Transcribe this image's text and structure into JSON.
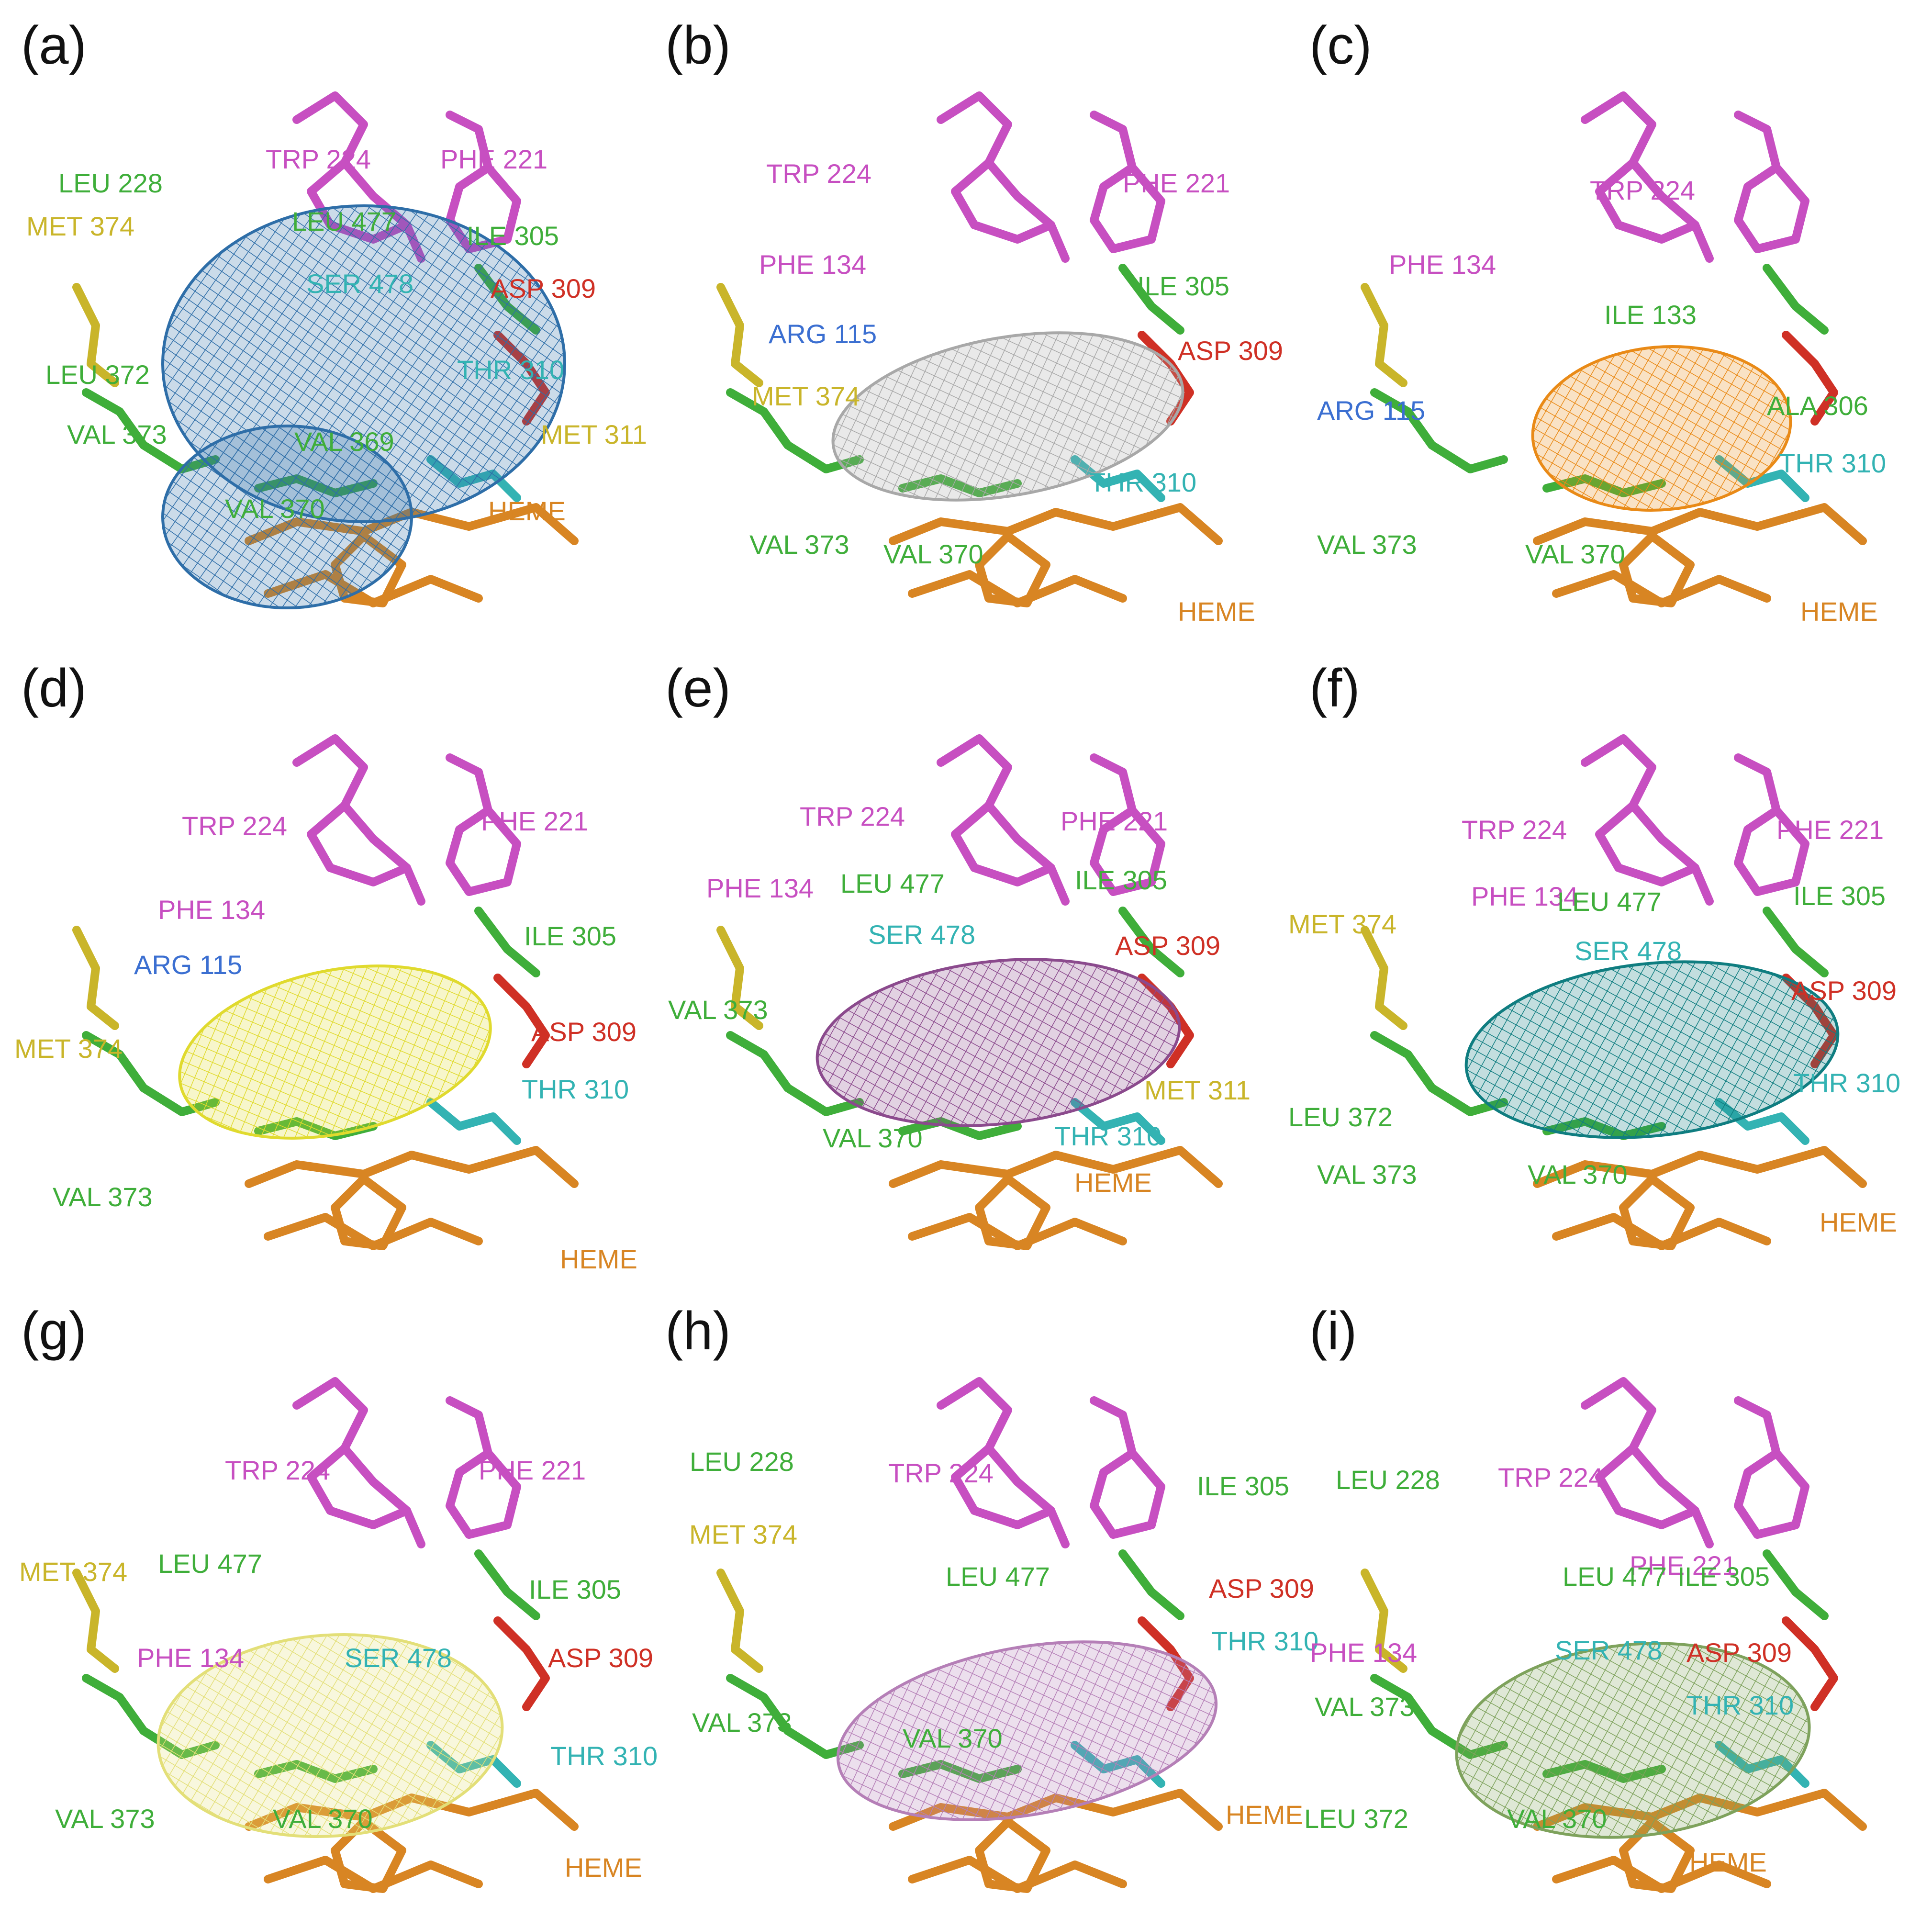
{
  "colors": {
    "magenta": "#c74fc1",
    "green": "#3fae3a",
    "yellow": "#c9b52a",
    "red": "#cf3025",
    "cyan": "#33b3b3",
    "blue": "#3b6fd1",
    "orange": "#d88523",
    "mesh_a": "#2e6ea8",
    "mesh_b": "#a8a8a8",
    "mesh_c": "#e98a17",
    "mesh_d": "#e0da2e",
    "mesh_e": "#8b4a8d",
    "mesh_f": "#0f7d80",
    "mesh_g": "#e3df78",
    "mesh_h": "#b57fb7",
    "mesh_i": "#7ea25c"
  },
  "panels": [
    {
      "id": "a",
      "label": "(a)",
      "mesh_color": "#2e6ea8",
      "labels": [
        {
          "text": "TRP 224",
          "color": "#c74fc1"
        },
        {
          "text": "PHE 221",
          "color": "#c74fc1"
        },
        {
          "text": "LEU 228",
          "color": "#3fae3a"
        },
        {
          "text": "LEU 477",
          "color": "#3fae3a"
        },
        {
          "text": "ILE 305",
          "color": "#3fae3a"
        },
        {
          "text": "MET 374",
          "color": "#c9b52a"
        },
        {
          "text": "SER 478",
          "color": "#33b3b3"
        },
        {
          "text": "ASP 309",
          "color": "#cf3025"
        },
        {
          "text": "LEU 372",
          "color": "#3fae3a"
        },
        {
          "text": "THR 310",
          "color": "#33b3b3"
        },
        {
          "text": "VAL 373",
          "color": "#3fae3a"
        },
        {
          "text": "VAL 369",
          "color": "#3fae3a"
        },
        {
          "text": "MET 311",
          "color": "#c9b52a"
        },
        {
          "text": "VAL 370",
          "color": "#3fae3a"
        },
        {
          "text": "HEME",
          "color": "#d88523"
        }
      ]
    },
    {
      "id": "b",
      "label": "(b)",
      "mesh_color": "#a8a8a8",
      "labels": [
        {
          "text": "TRP 224",
          "color": "#c74fc1"
        },
        {
          "text": "PHE 221",
          "color": "#c74fc1"
        },
        {
          "text": "PHE 134",
          "color": "#c74fc1"
        },
        {
          "text": "ILE 305",
          "color": "#3fae3a"
        },
        {
          "text": "ARG 115",
          "color": "#3b6fd1"
        },
        {
          "text": "ASP 309",
          "color": "#cf3025"
        },
        {
          "text": "MET 374",
          "color": "#c9b52a"
        },
        {
          "text": "THR 310",
          "color": "#33b3b3"
        },
        {
          "text": "VAL 373",
          "color": "#3fae3a"
        },
        {
          "text": "VAL 370",
          "color": "#3fae3a"
        },
        {
          "text": "HEME",
          "color": "#d88523"
        }
      ]
    },
    {
      "id": "c",
      "label": "(c)",
      "mesh_color": "#e98a17",
      "labels": [
        {
          "text": "TRP 224",
          "color": "#c74fc1"
        },
        {
          "text": "PHE 134",
          "color": "#c74fc1"
        },
        {
          "text": "ILE 133",
          "color": "#3fae3a"
        },
        {
          "text": "ARG 115",
          "color": "#3b6fd1"
        },
        {
          "text": "ALA 306",
          "color": "#3fae3a"
        },
        {
          "text": "THR 310",
          "color": "#33b3b3"
        },
        {
          "text": "VAL 373",
          "color": "#3fae3a"
        },
        {
          "text": "VAL 370",
          "color": "#3fae3a"
        },
        {
          "text": "HEME",
          "color": "#d88523"
        }
      ]
    },
    {
      "id": "d",
      "label": "(d)",
      "mesh_color": "#e0da2e",
      "labels": [
        {
          "text": "TRP 224",
          "color": "#c74fc1"
        },
        {
          "text": "PHE 221",
          "color": "#c74fc1"
        },
        {
          "text": "PHE 134",
          "color": "#c74fc1"
        },
        {
          "text": "ILE 305",
          "color": "#3fae3a"
        },
        {
          "text": "ARG 115",
          "color": "#3b6fd1"
        },
        {
          "text": "MET 374",
          "color": "#c9b52a"
        },
        {
          "text": "ASP 309",
          "color": "#cf3025"
        },
        {
          "text": "THR 310",
          "color": "#33b3b3"
        },
        {
          "text": "VAL 373",
          "color": "#3fae3a"
        },
        {
          "text": "HEME",
          "color": "#d88523"
        }
      ]
    },
    {
      "id": "e",
      "label": "(e)",
      "mesh_color": "#8b4a8d",
      "labels": [
        {
          "text": "TRP 224",
          "color": "#c74fc1"
        },
        {
          "text": "PHE 221",
          "color": "#c74fc1"
        },
        {
          "text": "PHE 134",
          "color": "#c74fc1"
        },
        {
          "text": "LEU 477",
          "color": "#3fae3a"
        },
        {
          "text": "ILE 305",
          "color": "#3fae3a"
        },
        {
          "text": "SER 478",
          "color": "#33b3b3"
        },
        {
          "text": "ASP 309",
          "color": "#cf3025"
        },
        {
          "text": "VAL 373",
          "color": "#3fae3a"
        },
        {
          "text": "MET 311",
          "color": "#c9b52a"
        },
        {
          "text": "VAL 370",
          "color": "#3fae3a"
        },
        {
          "text": "THR 310",
          "color": "#33b3b3"
        },
        {
          "text": "HEME",
          "color": "#d88523"
        }
      ]
    },
    {
      "id": "f",
      "label": "(f)",
      "mesh_color": "#0f7d80",
      "labels": [
        {
          "text": "TRP 224",
          "color": "#c74fc1"
        },
        {
          "text": "PHE 221",
          "color": "#c74fc1"
        },
        {
          "text": "PHE 134",
          "color": "#c74fc1"
        },
        {
          "text": "LEU 477",
          "color": "#3fae3a"
        },
        {
          "text": "ILE 305",
          "color": "#3fae3a"
        },
        {
          "text": "MET 374",
          "color": "#c9b52a"
        },
        {
          "text": "SER 478",
          "color": "#33b3b3"
        },
        {
          "text": "ASP 309",
          "color": "#cf3025"
        },
        {
          "text": "THR 310",
          "color": "#33b3b3"
        },
        {
          "text": "LEU 372",
          "color": "#3fae3a"
        },
        {
          "text": "VAL 373",
          "color": "#3fae3a"
        },
        {
          "text": "VAL 370",
          "color": "#3fae3a"
        },
        {
          "text": "HEME",
          "color": "#d88523"
        }
      ]
    },
    {
      "id": "g",
      "label": "(g)",
      "mesh_color": "#e3df78",
      "labels": [
        {
          "text": "TRP 224",
          "color": "#c74fc1"
        },
        {
          "text": "PHE 221",
          "color": "#c74fc1"
        },
        {
          "text": "MET 374",
          "color": "#c9b52a"
        },
        {
          "text": "LEU 477",
          "color": "#3fae3a"
        },
        {
          "text": "ILE 305",
          "color": "#3fae3a"
        },
        {
          "text": "PHE 134",
          "color": "#c74fc1"
        },
        {
          "text": "SER 478",
          "color": "#33b3b3"
        },
        {
          "text": "ASP 309",
          "color": "#cf3025"
        },
        {
          "text": "THR 310",
          "color": "#33b3b3"
        },
        {
          "text": "VAL 373",
          "color": "#3fae3a"
        },
        {
          "text": "VAL 370",
          "color": "#3fae3a"
        },
        {
          "text": "HEME",
          "color": "#d88523"
        }
      ]
    },
    {
      "id": "h",
      "label": "(h)",
      "mesh_color": "#b57fb7",
      "labels": [
        {
          "text": "LEU 228",
          "color": "#3fae3a"
        },
        {
          "text": "TRP 224",
          "color": "#c74fc1"
        },
        {
          "text": "ILE 305",
          "color": "#3fae3a"
        },
        {
          "text": "MET 374",
          "color": "#c9b52a"
        },
        {
          "text": "LEU 477",
          "color": "#3fae3a"
        },
        {
          "text": "ASP 309",
          "color": "#cf3025"
        },
        {
          "text": "THR 310",
          "color": "#33b3b3"
        },
        {
          "text": "VAL 373",
          "color": "#3fae3a"
        },
        {
          "text": "VAL 370",
          "color": "#3fae3a"
        },
        {
          "text": "HEME",
          "color": "#d88523"
        }
      ]
    },
    {
      "id": "i",
      "label": "(i)",
      "mesh_color": "#7ea25c",
      "labels": [
        {
          "text": "LEU 228",
          "color": "#3fae3a"
        },
        {
          "text": "TRP 224",
          "color": "#c74fc1"
        },
        {
          "text": "PHE 221",
          "color": "#c74fc1"
        },
        {
          "text": "LEU 477",
          "color": "#3fae3a"
        },
        {
          "text": "ILE 305",
          "color": "#3fae3a"
        },
        {
          "text": "PHE 134",
          "color": "#c74fc1"
        },
        {
          "text": "SER 478",
          "color": "#33b3b3"
        },
        {
          "text": "ASP 309",
          "color": "#cf3025"
        },
        {
          "text": "VAL 373",
          "color": "#3fae3a"
        },
        {
          "text": "THR 310",
          "color": "#33b3b3"
        },
        {
          "text": "LEU 372",
          "color": "#3fae3a"
        },
        {
          "text": "VAL 370",
          "color": "#3fae3a"
        },
        {
          "text": "HEME",
          "color": "#d88523"
        }
      ]
    }
  ]
}
